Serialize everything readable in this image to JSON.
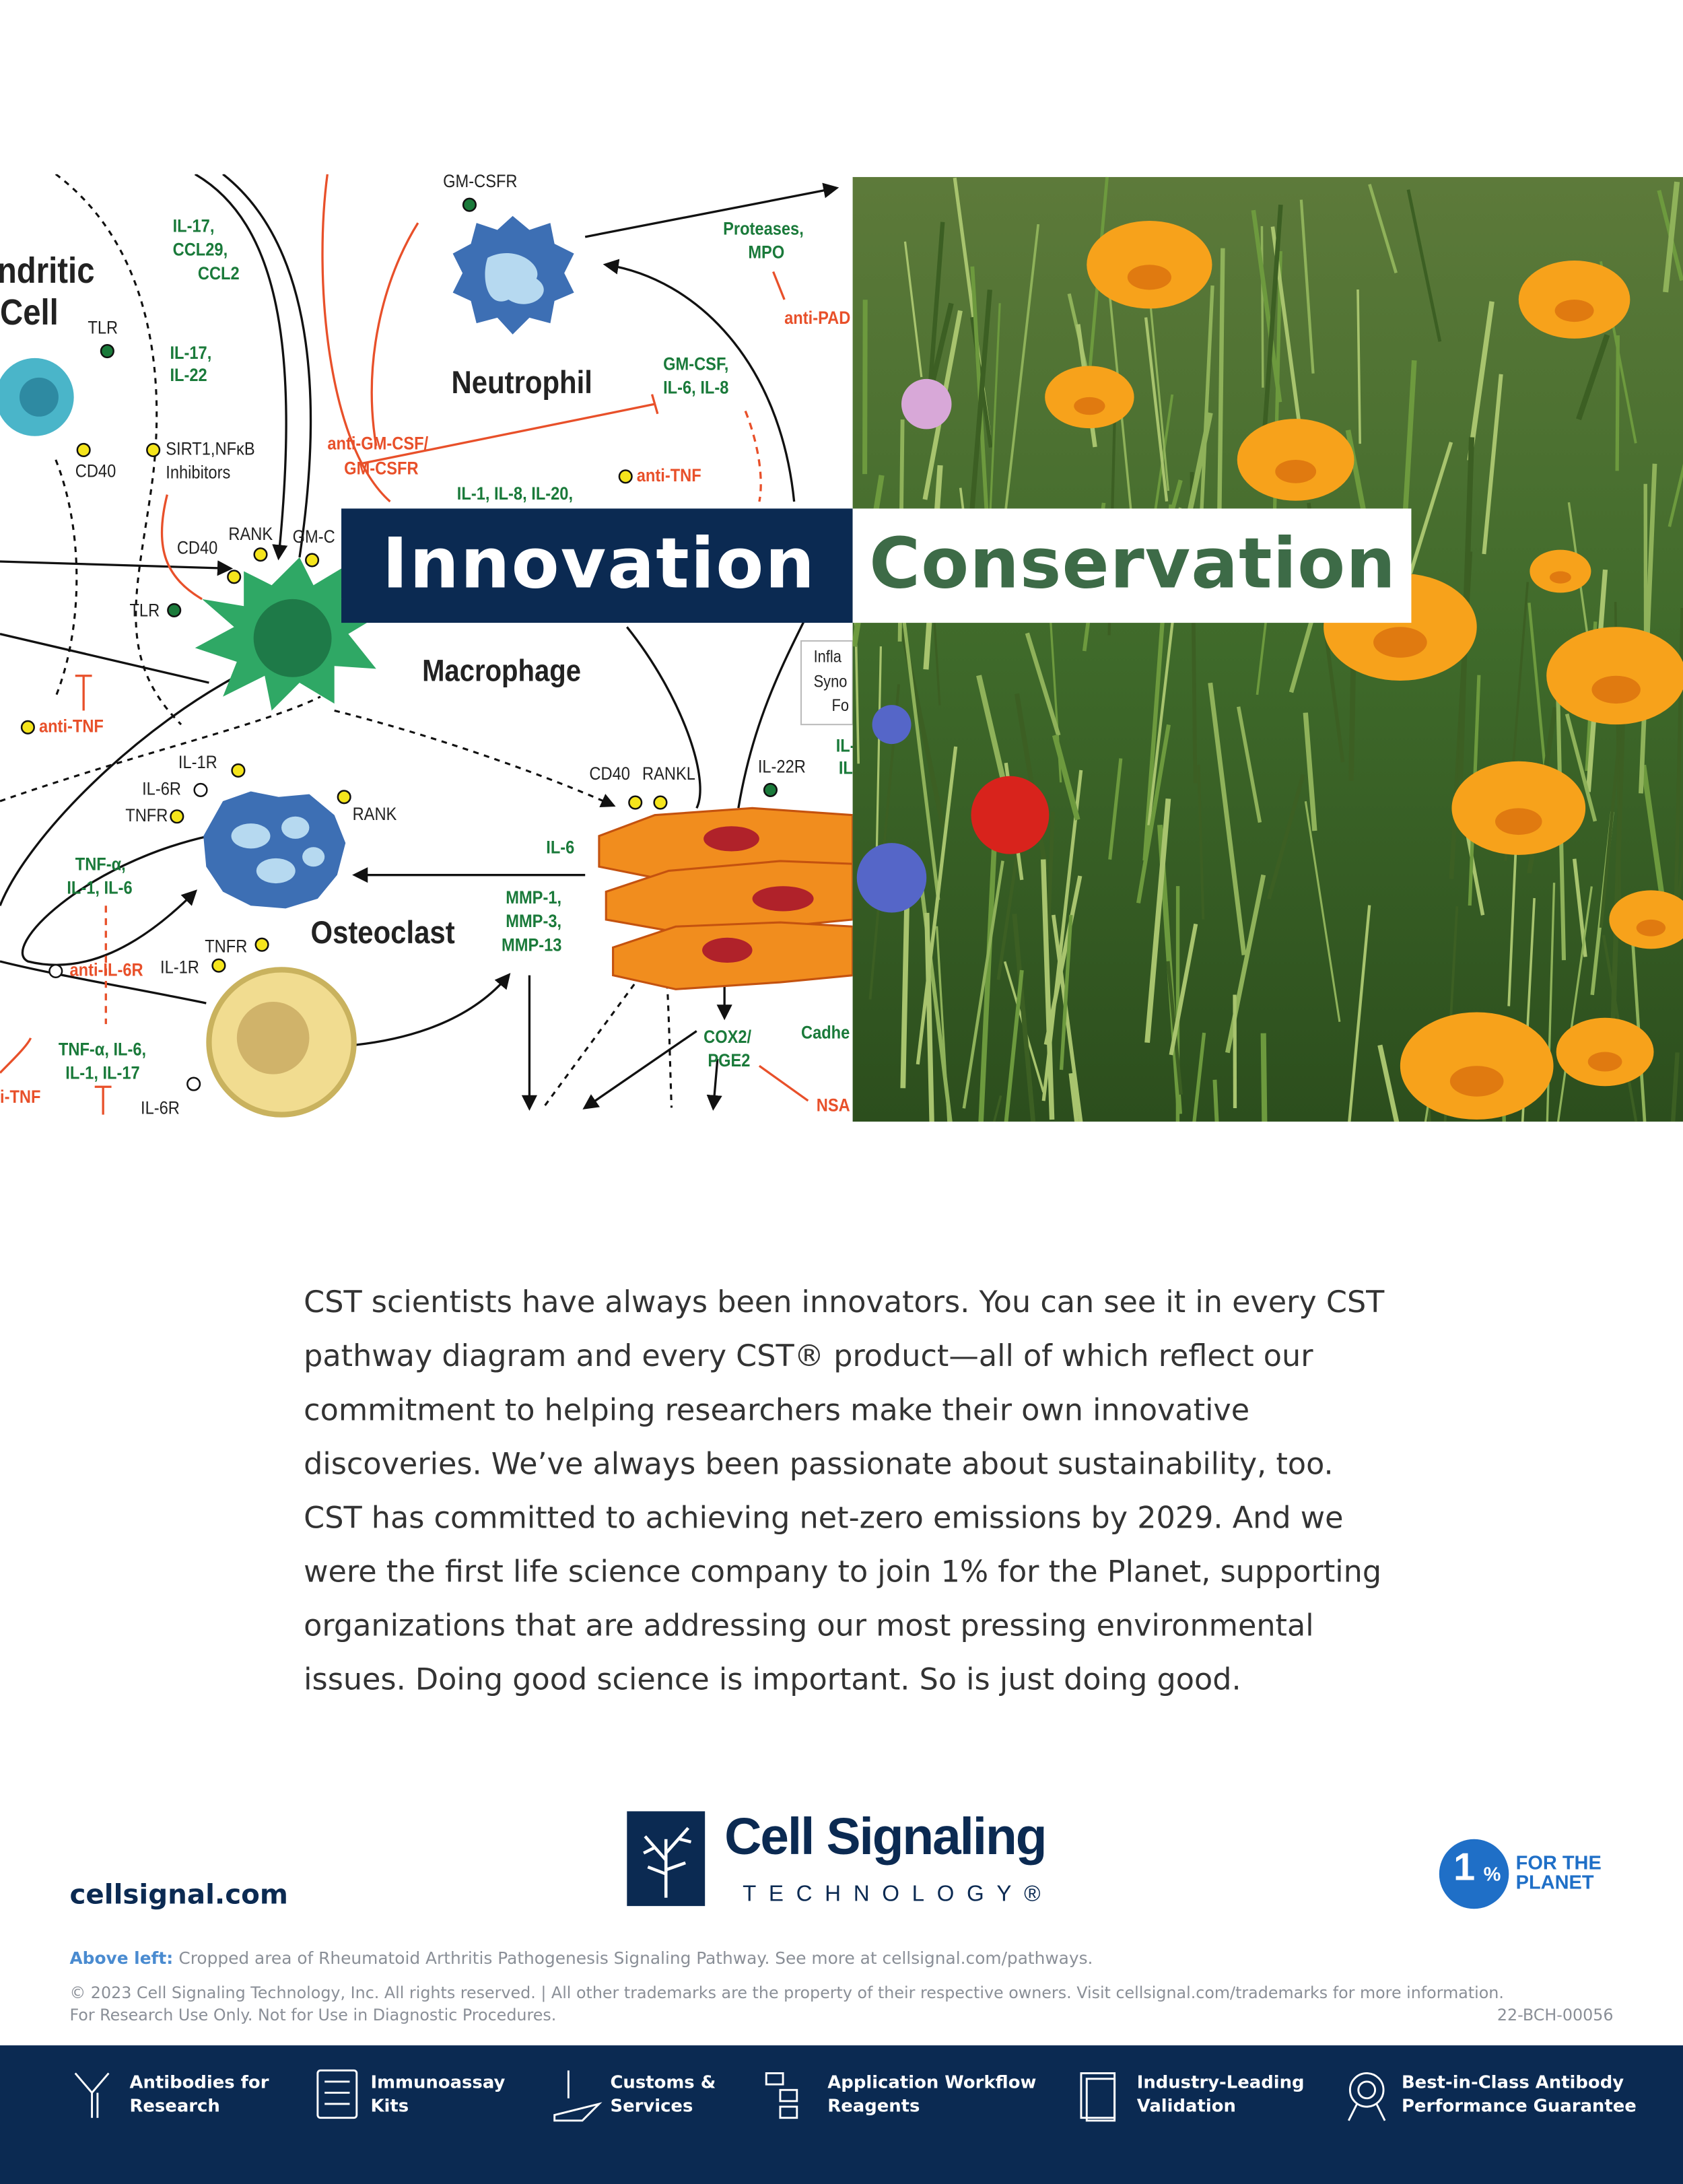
{
  "diagram": {
    "labels": [
      "ndritic",
      "Cell",
      "TLR",
      "CD40",
      "IL-17,",
      "CCL29,",
      "CCL2",
      "IL-17,",
      "IL-22",
      "SIRT1,NFκB",
      "Inhibitors",
      "GM-CSFR",
      "Neutrophil",
      "Proteases,",
      "MPO",
      "anti-PAD",
      "GM-CSF,",
      "IL-6, IL-8",
      "anti-GM-CSF/",
      "GM-CSFR",
      "anti-TNF",
      "IL-1, IL-8, IL-20,",
      "CD40",
      "RANK",
      "GM-C",
      "TLR",
      "Macrophage",
      "anti-TNF",
      "Infla",
      "Syno",
      "Fo",
      "IL-1R",
      "IL-6R",
      "TNFR",
      "RANK",
      "CD40",
      "RANKL",
      "IL-22R",
      "IL-",
      "IL-",
      "TNF-α,",
      "IL-1, IL-6",
      "IL-6",
      "MMP-1,",
      "MMP-3,",
      "MMP-13",
      "Osteoclast",
      "anti-IL-6R",
      "IL-1R",
      "TNFR",
      "TNF-α, IL-6,",
      "IL-1, IL-17",
      "i-TNF",
      "IL-6R",
      "COX2/",
      "PGE2",
      "Cadhe",
      "NSA"
    ]
  },
  "banner": {
    "left": "Innovation",
    "right": "Conservation"
  },
  "body": {
    "lines": [
      "CST scientists have always been innovators. You can see it in every CST",
      "pathway diagram and every CST® product—all of which reflect our",
      "commitment to helping researchers make their own innovative",
      "discoveries. We’ve always been passionate about sustainability, too.",
      "CST has committed to achieving net-zero emissions by 2029. And we",
      "were the first life science company to join 1% for the Planet, supporting",
      "organizations that are addressing our most pressing environmental",
      "issues. Doing good science is important. So is just doing good."
    ]
  },
  "logo": {
    "name": "Cell Signaling",
    "sub": "TECHNOLOGY®"
  },
  "website": "cellsignal.com",
  "planet": {
    "one": "1",
    "percent": "%",
    "line1": "FOR THE",
    "line2": "PLANET"
  },
  "notes": {
    "lead": "Above left:",
    "text": "Cropped area of Rheumatoid Arthritis Pathogenesis Signaling Pathway. See more at cellsignal.com/pathways.",
    "copyright": "© 2023 Cell Signaling Technology, Inc. All rights reserved. | All other trademarks are the property of their respective owners. Visit cellsignal.com/trademarks for more information.",
    "ruo": "For Research Use Only. Not for Use in Diagnostic Procedures.",
    "code": "22-BCH-00056"
  },
  "footer": {
    "items": [
      [
        "Antibodies for",
        "Research"
      ],
      [
        "Immunoassay",
        "Kits"
      ],
      [
        "Customs &",
        "Services"
      ],
      [
        "Application Workflow",
        "Reagents"
      ],
      [
        "Industry-Leading",
        "Validation"
      ],
      [
        "Best-in-Class Antibody",
        "Performance Guarantee"
      ]
    ]
  }
}
